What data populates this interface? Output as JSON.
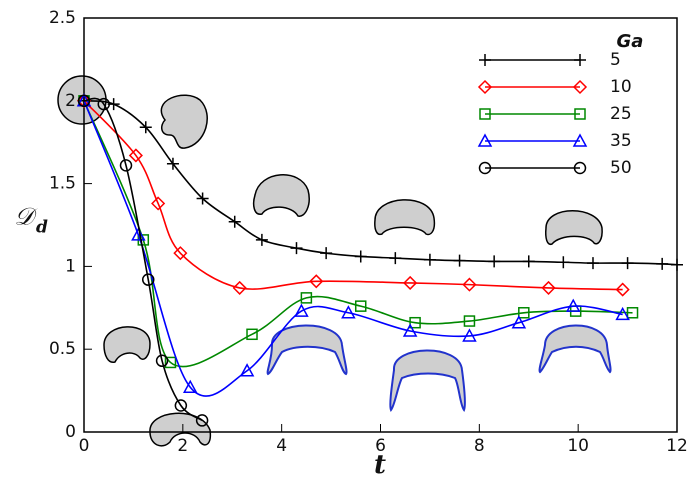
{
  "chart_data": {
    "type": "line",
    "x_label": "t",
    "y_label": "𝒟",
    "y_label_sub": "d",
    "legend_title": "Ga",
    "xlim": [
      0,
      12
    ],
    "xticks": [
      0,
      2,
      4,
      6,
      8,
      10,
      12
    ],
    "ylim": [
      0,
      2.5
    ],
    "yticks": [
      0,
      0.5,
      1,
      1.5,
      2,
      2.5
    ],
    "legend": "upper right",
    "series": [
      {
        "name": "5",
        "color": "#000000",
        "marker": "plus",
        "x": [
          0,
          0.6,
          1.25,
          1.8,
          2.4,
          3.05,
          3.6,
          4.3,
          4.9,
          5.6,
          6.3,
          7.0,
          7.6,
          8.3,
          9.0,
          9.7,
          10.3,
          11.0,
          11.7,
          12
        ],
        "values": [
          2.0,
          1.98,
          1.84,
          1.62,
          1.41,
          1.27,
          1.16,
          1.11,
          1.08,
          1.06,
          1.05,
          1.04,
          1.035,
          1.03,
          1.03,
          1.025,
          1.02,
          1.02,
          1.015,
          1.01
        ]
      },
      {
        "name": "10",
        "color": "#ff0000",
        "marker": "diamond",
        "x": [
          0,
          1.05,
          1.5,
          1.95,
          3.15,
          4.7,
          6.6,
          7.8,
          9.4,
          10.9
        ],
        "values": [
          2.0,
          1.67,
          1.38,
          1.08,
          0.87,
          0.91,
          0.9,
          0.89,
          0.87,
          0.86
        ]
      },
      {
        "name": "25",
        "color": "#008800",
        "marker": "square",
        "x": [
          0,
          1.2,
          1.75,
          3.4,
          4.5,
          5.6,
          6.7,
          7.8,
          8.9,
          9.95,
          11.1
        ],
        "values": [
          2.0,
          1.16,
          0.42,
          0.59,
          0.81,
          0.76,
          0.66,
          0.67,
          0.72,
          0.73,
          0.72
        ]
      },
      {
        "name": "35",
        "color": "#0000ff",
        "marker": "triangle",
        "x": [
          0,
          1.1,
          2.15,
          3.3,
          4.4,
          5.35,
          6.6,
          7.8,
          8.8,
          9.9,
          10.9
        ],
        "values": [
          2.0,
          1.19,
          0.27,
          0.37,
          0.73,
          0.72,
          0.61,
          0.58,
          0.66,
          0.76,
          0.71
        ]
      },
      {
        "name": "50",
        "color": "#000000",
        "marker": "circle",
        "x": [
          0,
          0.4,
          0.85,
          1.3,
          1.58,
          1.96,
          2.39
        ],
        "values": [
          2.0,
          1.98,
          1.61,
          0.92,
          0.43,
          0.16,
          0.07
        ]
      }
    ]
  }
}
